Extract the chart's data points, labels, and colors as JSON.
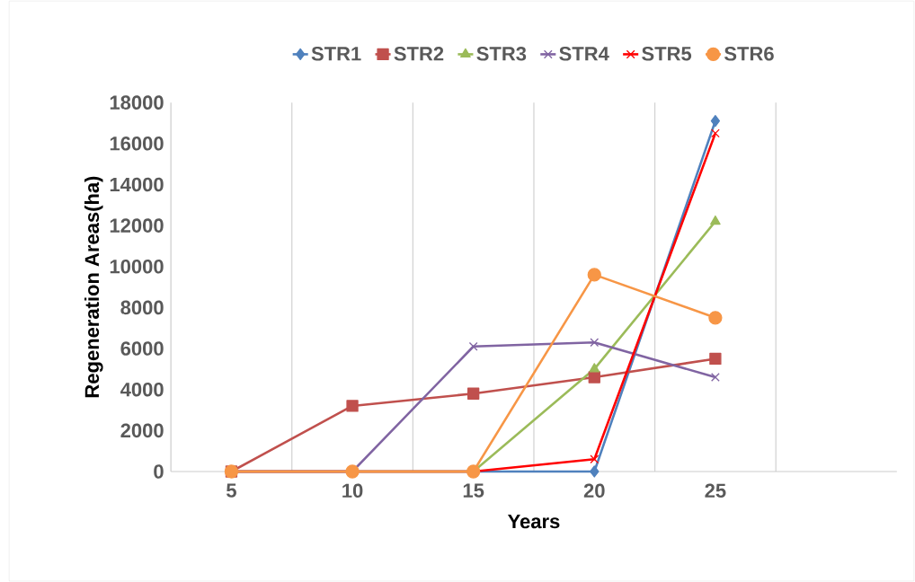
{
  "chart_data": {
    "type": "line",
    "xlabel": "Years",
    "ylabel": "Regeneration Areas(ha)",
    "categories": [
      "5",
      "10",
      "15",
      "20",
      "25",
      null
    ],
    "series": [
      {
        "name": "STR1",
        "color": "#4f81bd",
        "marker": "diamond",
        "values": [
          0,
          0,
          0,
          0,
          17100,
          null
        ]
      },
      {
        "name": "STR2",
        "color": "#c0504d",
        "marker": "square",
        "values": [
          0,
          3200,
          3800,
          4600,
          5500,
          null
        ]
      },
      {
        "name": "STR3",
        "color": "#9bbb59",
        "marker": "triangle",
        "values": [
          0,
          0,
          0,
          5000,
          12200,
          null
        ]
      },
      {
        "name": "STR4",
        "color": "#8064a2",
        "marker": "cross",
        "values": [
          0,
          0,
          6100,
          6300,
          4600,
          null
        ]
      },
      {
        "name": "STR5",
        "color": "#ff0000",
        "marker": "cross",
        "values": [
          0,
          0,
          0,
          600,
          16500,
          null
        ]
      },
      {
        "name": "STR6",
        "color": "#f79646",
        "marker": "circle",
        "values": [
          0,
          0,
          0,
          9600,
          7500,
          null
        ]
      }
    ],
    "ylim": [
      0,
      18000
    ],
    "yticks": [
      0,
      2000,
      4000,
      6000,
      8000,
      10000,
      12000,
      14000,
      16000,
      18000
    ],
    "grid": "x",
    "legend": "top",
    "line_style": "solid"
  }
}
